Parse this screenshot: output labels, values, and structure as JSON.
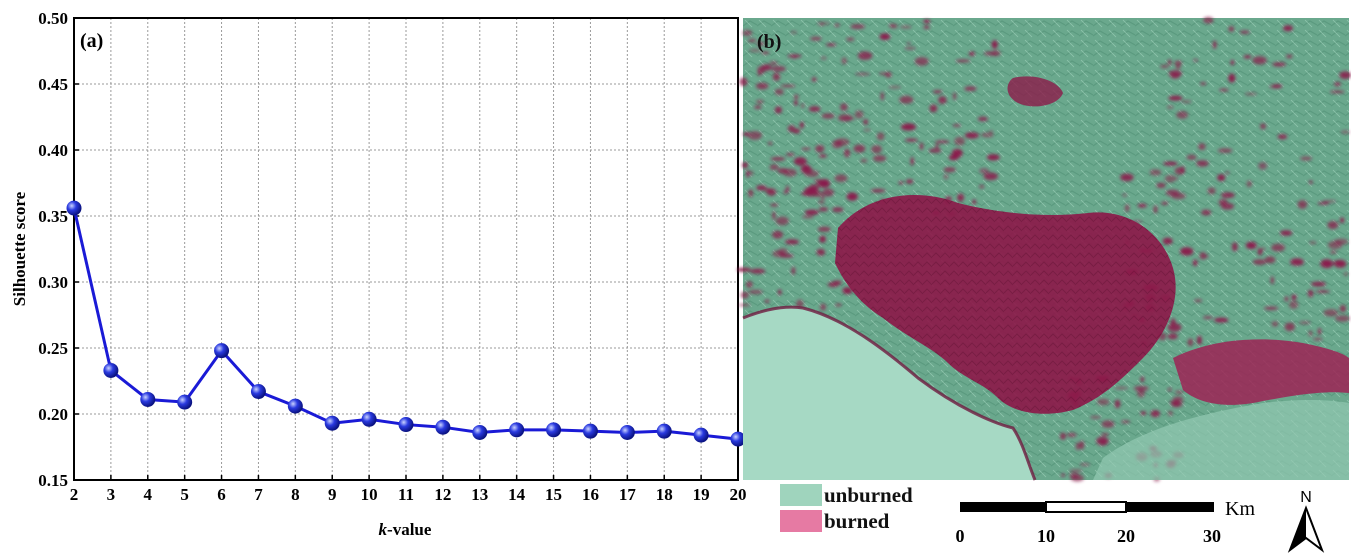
{
  "chart_data": {
    "type": "line",
    "panel_label": "(a)",
    "xlabel_italic": "k",
    "xlabel_rest": "-value",
    "ylabel": "Silhouette score",
    "x": [
      2,
      3,
      4,
      5,
      6,
      7,
      8,
      9,
      10,
      11,
      12,
      13,
      14,
      15,
      16,
      17,
      18,
      19,
      20
    ],
    "series": [
      {
        "values": [
          0.356,
          0.233,
          0.211,
          0.209,
          0.248,
          0.217,
          0.206,
          0.193,
          0.196,
          0.192,
          0.19,
          0.186,
          0.188,
          0.188,
          0.187,
          0.186,
          0.187,
          0.184,
          0.181
        ]
      }
    ],
    "xlim": [
      2,
      20
    ],
    "ylim": [
      0.15,
      0.5
    ],
    "x_ticks": [
      "2",
      "3",
      "4",
      "5",
      "6",
      "7",
      "8",
      "9",
      "10",
      "11",
      "12",
      "13",
      "14",
      "15",
      "16",
      "17",
      "18",
      "19",
      "20"
    ],
    "y_ticks": [
      "0.15",
      "0.20",
      "0.25",
      "0.30",
      "0.35",
      "0.40",
      "0.45",
      "0.50"
    ],
    "grid": true,
    "colors": {
      "line": "#1a1ad6",
      "marker": "#2a3ae0"
    }
  },
  "map": {
    "panel_label": "(b)",
    "colors": {
      "unburned": "#9fd4bd",
      "burned": "#e67aa3",
      "terrain": "#5f9e83",
      "burned_dark": "#8c1a4a",
      "sea": "#a6d9c4"
    }
  },
  "legend": {
    "items": [
      {
        "label": "unburned",
        "color": "#9fd4bd"
      },
      {
        "label": "burned",
        "color": "#e67aa3"
      }
    ]
  },
  "scale": {
    "ticks": [
      "0",
      "10",
      "20",
      "30"
    ],
    "unit": "Km"
  },
  "north": {
    "label": "N"
  }
}
